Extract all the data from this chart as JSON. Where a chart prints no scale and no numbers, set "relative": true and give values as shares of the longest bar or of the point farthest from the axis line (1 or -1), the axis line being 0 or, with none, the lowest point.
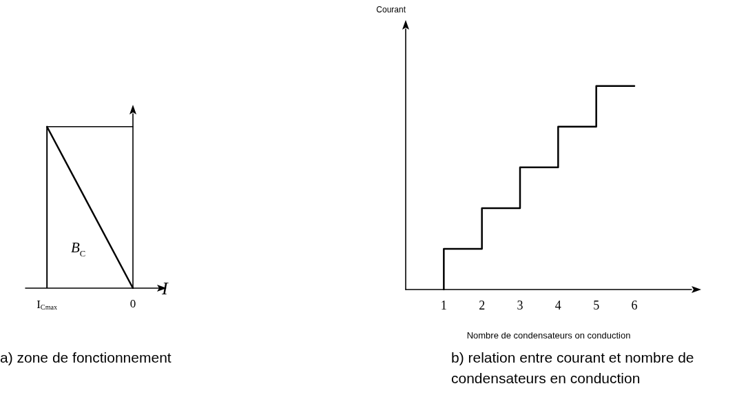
{
  "chart_data": [
    {
      "type": "line",
      "xlabel": "I",
      "categories": [
        null,
        "I$_{Cmax}$",
        null,
        null,
        null,
        "0"
      ],
      "relative": true,
      "marker": "none",
      "grid": false,
      "series": [
        {
          "values": [
            null,
            1,
            null,
            null,
            null,
            0
          ],
          "color": "#000000"
        },
        {
          "values": [
            null,
            1,
            null,
            null,
            null,
            1
          ],
          "color": "#000000"
        },
        {
          "type": "bar",
          "values": [
            null,
            1,
            null,
            null,
            null,
            null
          ],
          "color": "#000000"
        }
      ],
      "annotations": [
        "B$_{C}$",
        "a) zone de fonctionnement"
      ]
    },
    {
      "type": "step",
      "xlabel": "Nombre de condensateurs on conduction",
      "ylabel": "Courant",
      "xlim": [
        0,
        7.5
      ],
      "xticks": [
        1,
        2,
        3,
        4,
        5,
        6
      ],
      "relative": true,
      "marker": "none",
      "grid": false,
      "color": "#000000",
      "x": [
        1,
        1,
        2,
        3,
        4,
        5,
        6
      ],
      "values": [
        0,
        0.2,
        0.4,
        0.6,
        0.8,
        1,
        1
      ],
      "annotations": [
        "b) relation entre courant et nombre de condensateurs en conduction"
      ]
    }
  ]
}
